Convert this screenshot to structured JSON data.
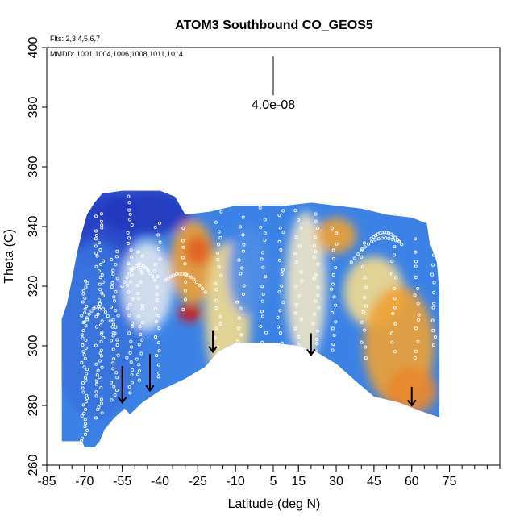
{
  "header": {
    "title": "ATOM3 Southbound CO_GEOS5",
    "flights_note": "Flts: 2,3,4,5,6,7",
    "dates_note": "MMDD: 1001,1004,1006,1008,1011,1014"
  },
  "chart_data": {
    "type": "heatmap",
    "title": "ATOM3 Southbound CO_GEOS5",
    "xlabel": "Latitude (deg N)",
    "ylabel": "Theta (C)",
    "xlim": [
      -85,
      95
    ],
    "ylim": [
      260,
      400
    ],
    "x_ticks": [
      -85,
      -70,
      -55,
      -40,
      -25,
      -10,
      5,
      15,
      30,
      45,
      60,
      75
    ],
    "x_tick_labels": [
      "-85",
      "-70",
      "-55",
      "-40",
      "-25",
      "-10",
      "5",
      "15",
      "30",
      "45",
      "60",
      "75"
    ],
    "x_minor_step": 5,
    "y_ticks": [
      260,
      280,
      300,
      320,
      340,
      360,
      380,
      400
    ],
    "y_tick_labels": [
      "260",
      "280",
      "300",
      "320",
      "340",
      "360",
      "380",
      "400"
    ],
    "scale_bar_label": "4.0e-08",
    "colors": {
      "low": "#1a1ab0",
      "mid_low": "#3c82e6",
      "mid": "#f0f0f0",
      "mid_high": "#f5c83c",
      "high": "#d21414",
      "points": "#ffffff",
      "arrows": "#000000"
    },
    "field_top": [
      [
        -79,
        309
      ],
      [
        -77,
        314
      ],
      [
        -75,
        322
      ],
      [
        -73,
        331
      ],
      [
        -71,
        338
      ],
      [
        -69,
        344
      ],
      [
        -66,
        348
      ],
      [
        -63,
        351
      ],
      [
        -55,
        352
      ],
      [
        -40,
        352
      ],
      [
        -34,
        350
      ],
      [
        -30,
        344
      ],
      [
        -20,
        345
      ],
      [
        -10,
        347
      ],
      [
        0,
        347
      ],
      [
        10,
        347
      ],
      [
        20,
        348
      ],
      [
        30,
        347
      ],
      [
        40,
        346
      ],
      [
        50,
        344
      ],
      [
        60,
        343
      ],
      [
        66,
        341
      ],
      [
        67,
        335
      ],
      [
        70,
        328
      ],
      [
        71,
        318
      ]
    ],
    "field_bottom": [
      [
        71,
        276
      ],
      [
        64,
        278
      ],
      [
        55,
        281
      ],
      [
        45,
        283
      ],
      [
        38,
        288
      ],
      [
        30,
        294
      ],
      [
        22,
        298
      ],
      [
        15,
        300
      ],
      [
        5,
        301
      ],
      [
        -10,
        301
      ],
      [
        -17,
        298
      ],
      [
        -22,
        293
      ],
      [
        -30,
        289
      ],
      [
        -40,
        285
      ],
      [
        -47,
        281
      ],
      [
        -52,
        277
      ],
      [
        -54,
        279
      ],
      [
        -58,
        276
      ],
      [
        -62,
        272
      ],
      [
        -64,
        268
      ],
      [
        -66,
        266
      ],
      [
        -70,
        266
      ],
      [
        -71,
        268
      ],
      [
        -79,
        268
      ]
    ],
    "anomalies": [
      {
        "lat": -72,
        "theta": 345,
        "rx": 10,
        "ry": 8,
        "level": 0.0
      },
      {
        "lat": -63,
        "theta": 340,
        "rx": 14,
        "ry": 14,
        "level": 0.12
      },
      {
        "lat": -65,
        "theta": 305,
        "rx": 18,
        "ry": 30,
        "level": 0.25
      },
      {
        "lat": -45,
        "theta": 345,
        "rx": 18,
        "ry": 8,
        "level": 0.08
      },
      {
        "lat": -45,
        "theta": 320,
        "rx": 10,
        "ry": 15,
        "level": 0.48
      },
      {
        "lat": -27,
        "theta": 328,
        "rx": 9,
        "ry": 14,
        "level": 0.78
      },
      {
        "lat": -25,
        "theta": 332,
        "rx": 5,
        "ry": 5,
        "level": 0.88
      },
      {
        "lat": -28,
        "theta": 311,
        "rx": 5,
        "ry": 3,
        "level": 1.0
      },
      {
        "lat": -13,
        "theta": 310,
        "rx": 9,
        "ry": 25,
        "level": 0.62
      },
      {
        "lat": -5,
        "theta": 325,
        "rx": 8,
        "ry": 15,
        "level": 0.32
      },
      {
        "lat": 18,
        "theta": 320,
        "rx": 8,
        "ry": 25,
        "level": 0.55
      },
      {
        "lat": 30,
        "theta": 337,
        "rx": 8,
        "ry": 6,
        "level": 0.78
      },
      {
        "lat": 45,
        "theta": 318,
        "rx": 12,
        "ry": 12,
        "level": 0.62
      },
      {
        "lat": 55,
        "theta": 300,
        "rx": 14,
        "ry": 20,
        "level": 0.78
      },
      {
        "lat": 60,
        "theta": 285,
        "rx": 10,
        "ry": 8,
        "level": 0.82
      }
    ],
    "flight_tracks": [
      {
        "lat": -70,
        "theta_min": 268,
        "theta_max": 322,
        "step": 1.2,
        "jitter": 1.2
      },
      {
        "lat": -64,
        "theta_min": 276,
        "theta_max": 345,
        "step": 1.2,
        "jitter": 1.5
      },
      {
        "lat": -58,
        "theta_min": 282,
        "theta_max": 332,
        "step": 1.5,
        "jitter": 1.4
      },
      {
        "lat": -52,
        "theta_min": 284,
        "theta_max": 350,
        "step": 2.0,
        "jitter": 1.2
      },
      {
        "lat": -48,
        "theta_min": 288,
        "theta_max": 333,
        "step": 2.0,
        "jitter": 1.3
      },
      {
        "lat": -41,
        "theta_min": 289,
        "theta_max": 343,
        "step": 2.4,
        "jitter": 1.2
      },
      {
        "lat": -30,
        "theta_min": 312,
        "theta_max": 340,
        "step": 3.0,
        "jitter": 1.0
      },
      {
        "lat": -17,
        "theta_min": 300,
        "theta_max": 347,
        "step": 2.6,
        "jitter": 1.3
      },
      {
        "lat": -8,
        "theta_min": 301,
        "theta_max": 345,
        "step": 2.8,
        "jitter": 1.5
      },
      {
        "lat": 1,
        "theta_min": 301,
        "theta_max": 347,
        "step": 2.8,
        "jitter": 1.3
      },
      {
        "lat": 8,
        "theta_min": 301,
        "theta_max": 346,
        "step": 2.8,
        "jitter": 1.3
      },
      {
        "lat": 15,
        "theta_min": 300,
        "theta_max": 346,
        "step": 2.8,
        "jitter": 1.4
      },
      {
        "lat": 22,
        "theta_min": 298,
        "theta_max": 344,
        "step": 2.4,
        "jitter": 1.2
      },
      {
        "lat": 29,
        "theta_min": 298,
        "theta_max": 340,
        "step": 2.6,
        "jitter": 1.2
      },
      {
        "lat": 41,
        "theta_min": 296,
        "theta_max": 336,
        "step": 3.0,
        "jitter": 1.0
      },
      {
        "lat": 53,
        "theta_min": 298,
        "theta_max": 334,
        "step": 3.0,
        "jitter": 1.0
      },
      {
        "lat": 62,
        "theta_min": 296,
        "theta_max": 335,
        "step": 3.0,
        "jitter": 1.0
      },
      {
        "lat": 69,
        "theta_min": 300,
        "theta_max": 335,
        "step": 3.0,
        "jitter": 1.0
      }
    ],
    "flight_arcs": [
      {
        "lat_start": -70,
        "lat_end": -57,
        "theta_start": 308,
        "theta_end": 302,
        "bulge": 8
      },
      {
        "lat_start": -55,
        "lat_end": -42,
        "theta_start": 320,
        "theta_end": 322,
        "bulge": 6
      },
      {
        "lat_start": -38,
        "lat_end": -22,
        "theta_start": 322,
        "theta_end": 318,
        "bulge": 4
      },
      {
        "lat_start": 36,
        "lat_end": 55,
        "theta_start": 328,
        "theta_end": 335,
        "bulge": 4
      },
      {
        "lat_start": 44,
        "lat_end": 56,
        "theta_start": 336,
        "theta_end": 334,
        "bulge": 3
      }
    ],
    "descent_arrows": [
      {
        "lat": -55,
        "theta_top": 293,
        "theta_bottom": 281
      },
      {
        "lat": -44,
        "theta_top": 297,
        "theta_bottom": 285
      },
      {
        "lat": -19,
        "theta_top": 305,
        "theta_bottom": 298
      },
      {
        "lat": 20,
        "theta_top": 304,
        "theta_bottom": 297
      },
      {
        "lat": 60,
        "theta_top": 286,
        "theta_bottom": 280
      }
    ],
    "scale_bar": {
      "lat": 5,
      "theta_top": 397,
      "theta_bottom": 384
    }
  }
}
